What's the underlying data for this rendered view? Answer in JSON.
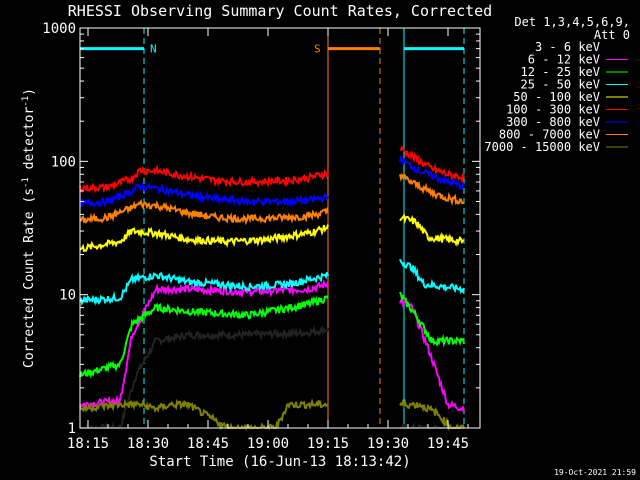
{
  "chart_data": {
    "type": "line",
    "title": "RHESSI Observing Summary Count Rates, Corrected",
    "xlabel": "Start Time (16-Jun-13 18:13:42)",
    "ylabel_main": "Corrected Count Rate (s",
    "ylabel_sup1": "-1",
    "ylabel_mid": " detector",
    "ylabel_sup2": "-1",
    "ylabel_end": ")",
    "yscale": "log",
    "ylim": [
      1,
      1000
    ],
    "xlim_minutes": [
      1093,
      1193
    ],
    "x_ticks": [
      {
        "label": "18:15",
        "minute": 1095
      },
      {
        "label": "18:30",
        "minute": 1110
      },
      {
        "label": "18:45",
        "minute": 1125
      },
      {
        "label": "19:00",
        "minute": 1140
      },
      {
        "label": "19:15",
        "minute": 1155
      },
      {
        "label": "19:30",
        "minute": 1170
      },
      {
        "label": "19:45",
        "minute": 1185
      }
    ],
    "y_ticks": [
      {
        "label": "1",
        "value": 1
      },
      {
        "label": "10",
        "value": 10
      },
      {
        "label": "100",
        "value": 100
      },
      {
        "label": "1000",
        "value": 1000
      }
    ],
    "legend_title_1": "Det 1,3,4,5,6,9,",
    "legend_title_2": "Att 0",
    "legend_position": "top-right",
    "flags": [
      {
        "name": "night",
        "label": "N",
        "color": "#00ffff",
        "start_minute": 1093,
        "end_minute": 1109,
        "level": 700
      },
      {
        "name": "saa",
        "label": "S",
        "color": "#ff8000",
        "start_minute": 1155,
        "end_minute": 1168,
        "level": 700
      },
      {
        "name": "night2",
        "label": "",
        "color": "#00ffff",
        "start_minute": 1174,
        "end_minute": 1189,
        "level": 700
      }
    ],
    "segments": [
      {
        "start_minute": 1093,
        "end_minute": 1155
      },
      {
        "start_minute": 1173,
        "end_minute": 1189
      }
    ],
    "series": [
      {
        "name": "3 - 6 keV",
        "color": "#000000",
        "points": [
          [
            1093,
            1.0
          ],
          [
            1103,
            1.0
          ],
          [
            1107,
            2.5
          ],
          [
            1112,
            4.5
          ],
          [
            1120,
            5.0
          ],
          [
            1135,
            5.0
          ],
          [
            1150,
            5.2
          ],
          [
            1155,
            5.5
          ],
          [
            1173,
            1.0
          ],
          [
            1189,
            1.0
          ]
        ]
      },
      {
        "name": "6 - 12 keV",
        "color": "#ff00ff",
        "points": [
          [
            1093,
            1.5
          ],
          [
            1103,
            1.6
          ],
          [
            1106,
            5.0
          ],
          [
            1112,
            11
          ],
          [
            1120,
            11
          ],
          [
            1135,
            10.5
          ],
          [
            1150,
            11
          ],
          [
            1155,
            12
          ],
          [
            1173,
            9
          ],
          [
            1176,
            8
          ],
          [
            1180,
            4
          ],
          [
            1185,
            1.5
          ],
          [
            1189,
            1.4
          ]
        ]
      },
      {
        "name": "12 - 25 keV",
        "color": "#00ff00",
        "points": [
          [
            1093,
            2.5
          ],
          [
            1103,
            3.0
          ],
          [
            1106,
            6.0
          ],
          [
            1112,
            8.0
          ],
          [
            1120,
            7.5
          ],
          [
            1135,
            7.0
          ],
          [
            1150,
            8.5
          ],
          [
            1155,
            9.5
          ],
          [
            1173,
            10
          ],
          [
            1177,
            7
          ],
          [
            1181,
            4.5
          ],
          [
            1189,
            4.5
          ]
        ]
      },
      {
        "name": "25 - 50 keV",
        "color": "#00ffff",
        "points": [
          [
            1093,
            9
          ],
          [
            1103,
            9.5
          ],
          [
            1106,
            13
          ],
          [
            1112,
            14
          ],
          [
            1120,
            12.5
          ],
          [
            1135,
            11.5
          ],
          [
            1145,
            12
          ],
          [
            1155,
            14
          ],
          [
            1173,
            18
          ],
          [
            1176,
            16
          ],
          [
            1179,
            12
          ],
          [
            1189,
            11
          ]
        ]
      },
      {
        "name": "50 - 100 keV",
        "color": "#ffff00",
        "points": [
          [
            1093,
            22
          ],
          [
            1103,
            25
          ],
          [
            1106,
            30
          ],
          [
            1112,
            29
          ],
          [
            1120,
            26
          ],
          [
            1130,
            25
          ],
          [
            1140,
            26
          ],
          [
            1150,
            29
          ],
          [
            1155,
            32
          ],
          [
            1173,
            38
          ],
          [
            1177,
            35
          ],
          [
            1180,
            27
          ],
          [
            1189,
            25
          ]
        ]
      },
      {
        "name": "100 - 300 keV",
        "color": "#ff0000",
        "points": [
          [
            1093,
            63
          ],
          [
            1100,
            64
          ],
          [
            1106,
            75
          ],
          [
            1108,
            86
          ],
          [
            1113,
            84
          ],
          [
            1120,
            77
          ],
          [
            1127,
            72
          ],
          [
            1135,
            70
          ],
          [
            1145,
            72
          ],
          [
            1150,
            75
          ],
          [
            1155,
            82
          ],
          [
            1173,
            125
          ],
          [
            1175,
            115
          ],
          [
            1178,
            100
          ],
          [
            1181,
            88
          ],
          [
            1185,
            80
          ],
          [
            1189,
            76
          ]
        ]
      },
      {
        "name": "300 - 800 keV",
        "color": "#0000ff",
        "points": [
          [
            1093,
            48
          ],
          [
            1100,
            50
          ],
          [
            1106,
            60
          ],
          [
            1108,
            65
          ],
          [
            1113,
            62
          ],
          [
            1120,
            56
          ],
          [
            1127,
            52
          ],
          [
            1135,
            50
          ],
          [
            1145,
            50
          ],
          [
            1150,
            51
          ],
          [
            1155,
            54
          ],
          [
            1173,
            105
          ],
          [
            1175,
            95
          ],
          [
            1178,
            85
          ],
          [
            1181,
            78
          ],
          [
            1185,
            70
          ],
          [
            1189,
            65
          ]
        ]
      },
      {
        "name": "800 - 7000 keV",
        "color": "#ff8000",
        "points": [
          [
            1093,
            36
          ],
          [
            1100,
            38
          ],
          [
            1106,
            45
          ],
          [
            1108,
            48
          ],
          [
            1113,
            46
          ],
          [
            1120,
            41
          ],
          [
            1127,
            38
          ],
          [
            1135,
            37
          ],
          [
            1145,
            38
          ],
          [
            1150,
            39
          ],
          [
            1155,
            42
          ],
          [
            1173,
            80
          ],
          [
            1175,
            72
          ],
          [
            1178,
            65
          ],
          [
            1181,
            58
          ],
          [
            1185,
            53
          ],
          [
            1189,
            50
          ]
        ]
      },
      {
        "name": "7000 - 15000 keV",
        "color": "#808000",
        "points": [
          [
            1093,
            1.4
          ],
          [
            1103,
            1.5
          ],
          [
            1108,
            1.5
          ],
          [
            1112,
            1.4
          ],
          [
            1116,
            1.5
          ],
          [
            1120,
            1.5
          ],
          [
            1130,
            1.0
          ],
          [
            1142,
            1.0
          ],
          [
            1145,
            1.5
          ],
          [
            1150,
            1.5
          ],
          [
            1155,
            1.5
          ],
          [
            1173,
            1.5
          ],
          [
            1178,
            1.5
          ],
          [
            1182,
            1.3
          ],
          [
            1186,
            1.0
          ],
          [
            1189,
            1.0
          ]
        ]
      }
    ]
  },
  "timestamp": "19-Oct-2021 21:59"
}
